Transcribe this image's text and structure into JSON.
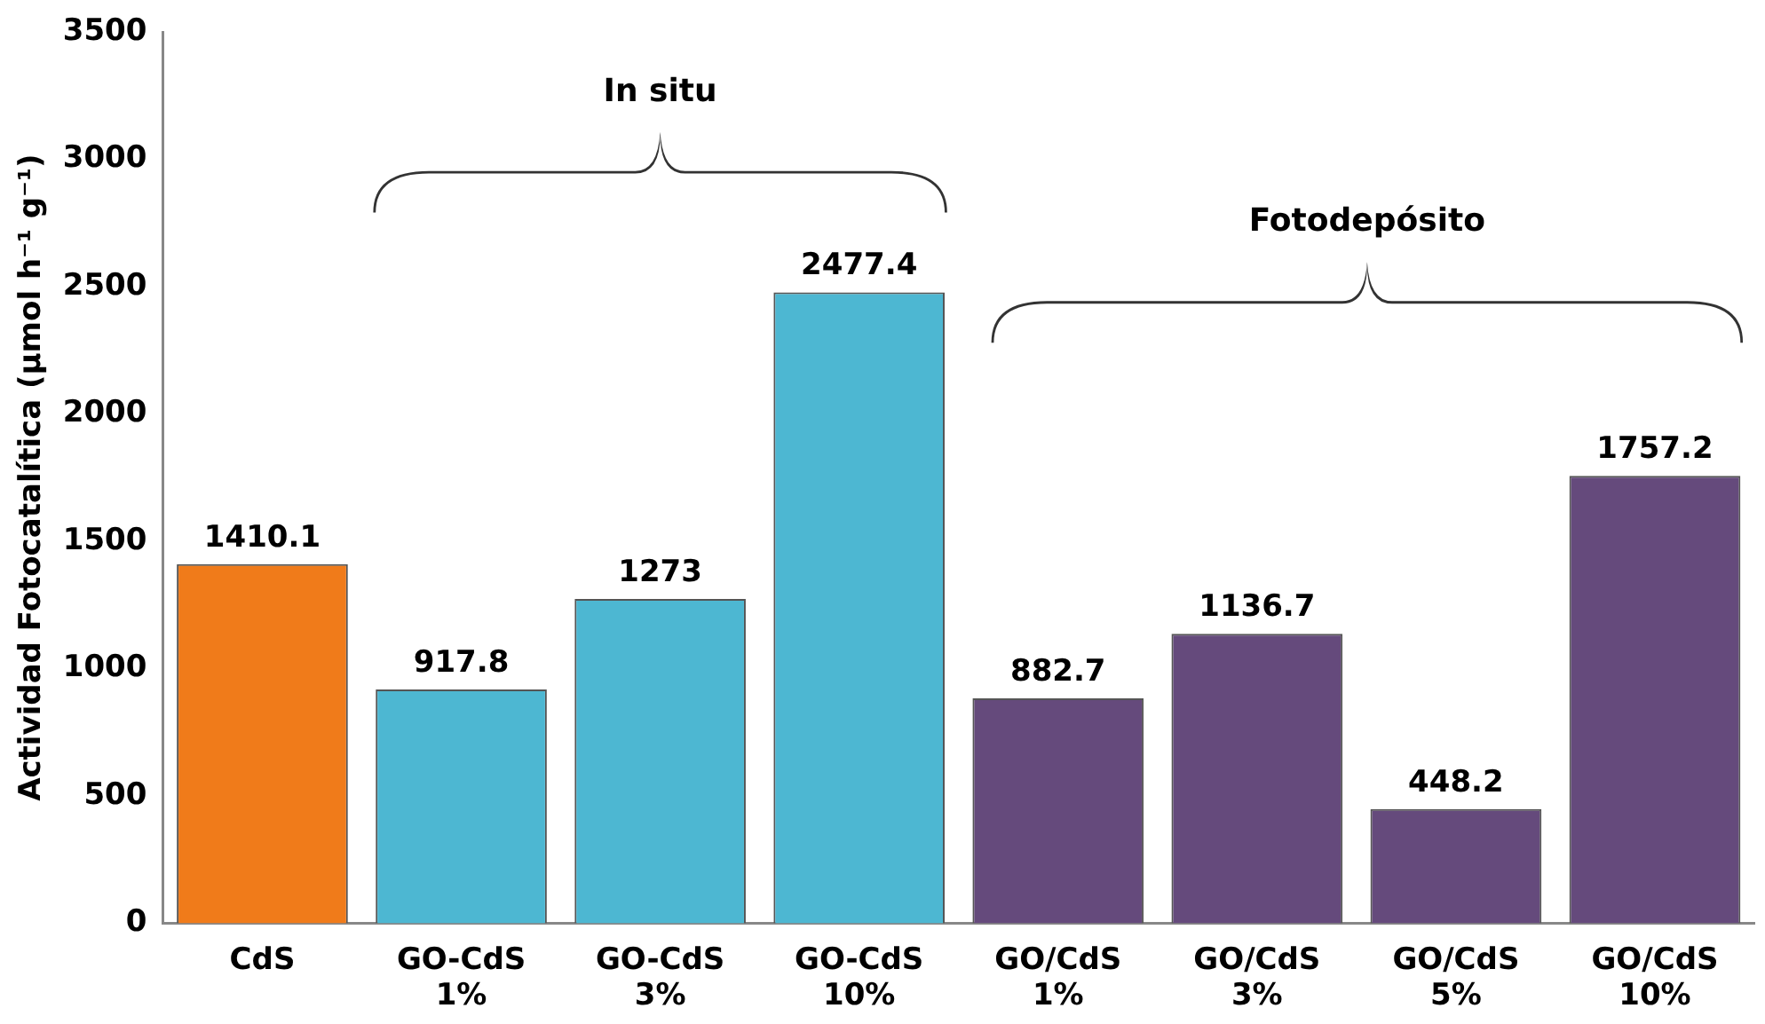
{
  "chart_data": {
    "type": "bar",
    "ylabel": "Actividad Fotocatalítica (µmol h⁻¹ g⁻¹)",
    "categories": [
      "CdS",
      "GO-CdS 1%",
      "GO-CdS 3%",
      "GO-CdS 10%",
      "GO/CdS 1%",
      "GO/CdS 3%",
      "GO/CdS 5%",
      "GO/CdS 10%"
    ],
    "values": [
      1410.1,
      917.8,
      1273,
      2477.4,
      882.7,
      1136.7,
      448.2,
      1757.2
    ],
    "value_labels": [
      "1410.1",
      "917.8",
      "1273",
      "2477.4",
      "882.7",
      "1136.7",
      "448.2",
      "1757.2"
    ],
    "colors": [
      "#f07b1a",
      "#4db7d2",
      "#4db7d2",
      "#4db7d2",
      "#654a7c",
      "#654a7c",
      "#654a7c",
      "#654a7c"
    ],
    "ylim": [
      0,
      3500
    ],
    "yticks": [
      0,
      500,
      1000,
      1500,
      2000,
      2500,
      3000,
      3500
    ],
    "grid": false,
    "annotations": [
      "In situ",
      "Fotodepósito"
    ]
  }
}
